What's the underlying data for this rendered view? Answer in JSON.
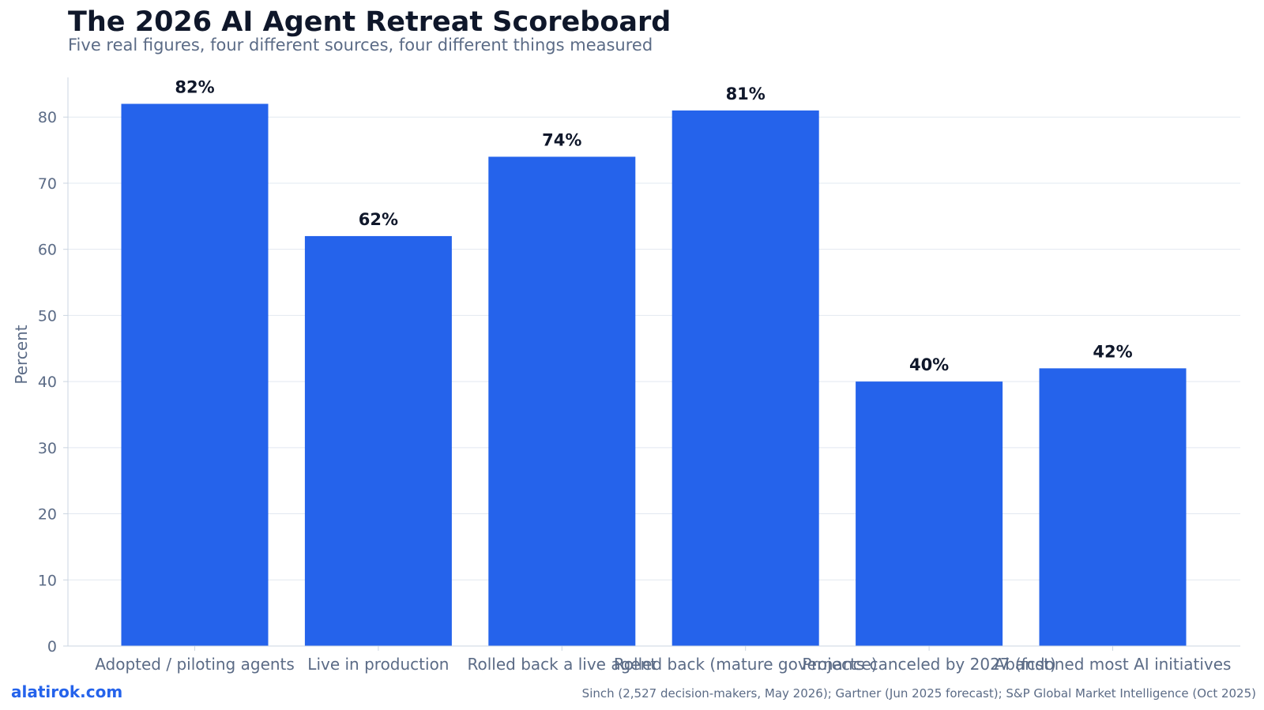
{
  "header": {
    "title": "The 2026 AI Agent Retreat Scoreboard",
    "subtitle": "Five real figures, four different sources, four different things measured"
  },
  "footer": {
    "brand": "alatirok.com",
    "source": "Sinch (2,527 decision-makers, May 2026); Gartner (Jun 2025 forecast); S&P Global Market Intelligence (Oct 2025)"
  },
  "colors": {
    "bar": "#2563eb",
    "axis_text": "#5b6b86",
    "value_label": "#0f172a",
    "grid": "#e2e8f0"
  },
  "chart_data": {
    "type": "bar",
    "categories": [
      "Adopted / piloting agents",
      "Live in production",
      "Rolled back a live agent",
      "Rolled back (mature governance)",
      "Projects canceled by 2027 (fcst)",
      "Abandoned most AI initiatives"
    ],
    "values": [
      82,
      62,
      74,
      81,
      40,
      42
    ],
    "value_labels": [
      "82%",
      "62%",
      "74%",
      "81%",
      "40%",
      "42%"
    ],
    "ylabel": "Percent",
    "xlabel": "",
    "ylim": [
      0,
      86
    ],
    "yticks": [
      0,
      10,
      20,
      30,
      40,
      50,
      60,
      70,
      80
    ],
    "grid": "horizontal",
    "legend": "none"
  }
}
